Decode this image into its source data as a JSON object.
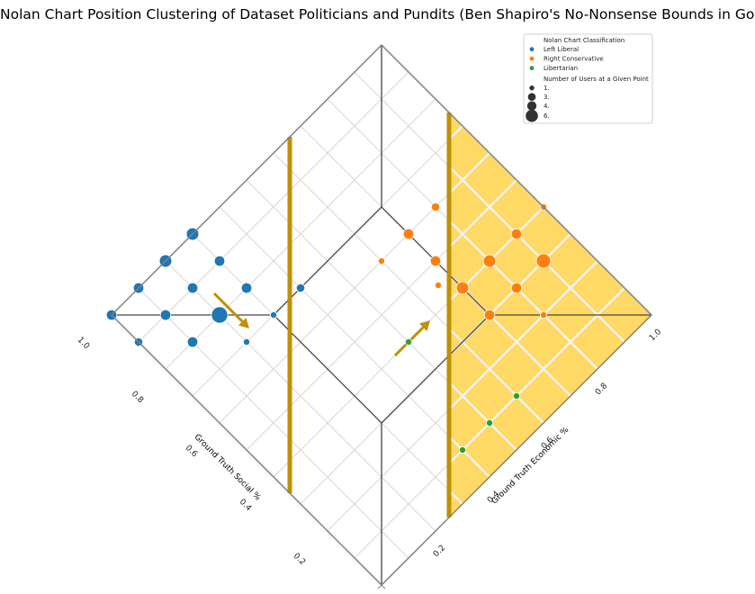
{
  "chart_data": {
    "type": "scatter",
    "title": "Nolan Chart Position Clustering of Dataset Politicians and Pundits (Ben Shapiro's No-Nonsense Bounds in Gold)",
    "xlabel": "Ground Truth Economic %",
    "ylabel": "Ground Truth Social %",
    "xlim": [
      0,
      1
    ],
    "ylim": [
      0,
      1
    ],
    "ticks": [
      "0.0",
      "0.2",
      "0.4",
      "0.6",
      "0.8",
      "1.0"
    ],
    "tick_values": [
      0,
      0.2,
      0.4,
      0.6,
      0.8,
      1.0
    ],
    "grid": true,
    "legend_position": "top-right",
    "legend": {
      "title": "Nolan Chart Classification",
      "size_title": "Number of Users at a Given Point",
      "size_labels": [
        "1.",
        "3.",
        "4.",
        "6."
      ],
      "size_values": [
        1,
        3,
        4,
        6
      ]
    },
    "gold_region_color": "#ffd966",
    "gold_line_color": "#bf9000",
    "series": [
      {
        "name": "Left Liberal",
        "color": "#1f77b4",
        "points": [
          {
            "x": 0.1,
            "y": 0.8,
            "n": 3
          },
          {
            "x": 0.0,
            "y": 0.9,
            "n": 2
          },
          {
            "x": 0.0,
            "y": 1.0,
            "n": 3
          },
          {
            "x": 0.1,
            "y": 1.0,
            "n": 3
          },
          {
            "x": 0.1,
            "y": 0.9,
            "n": 3
          },
          {
            "x": 0.2,
            "y": 0.9,
            "n": 3
          },
          {
            "x": 0.2,
            "y": 1.0,
            "n": 4
          },
          {
            "x": 0.3,
            "y": 0.8,
            "n": 3
          },
          {
            "x": 0.3,
            "y": 0.9,
            "n": 3
          },
          {
            "x": 0.3,
            "y": 1.0,
            "n": 4
          },
          {
            "x": 0.2,
            "y": 0.8,
            "n": 6
          },
          {
            "x": 0.2,
            "y": 0.7,
            "n": 1
          },
          {
            "x": 0.3,
            "y": 0.7,
            "n": 1
          },
          {
            "x": 0.4,
            "y": 0.7,
            "n": 2
          }
        ]
      },
      {
        "name": "Right Conservative",
        "color": "#ff7f0e",
        "points": [
          {
            "x": 0.7,
            "y": 0.6,
            "n": 3
          },
          {
            "x": 0.8,
            "y": 0.6,
            "n": 2
          },
          {
            "x": 0.7,
            "y": 0.5,
            "n": 3
          },
          {
            "x": 0.8,
            "y": 0.4,
            "n": 4
          },
          {
            "x": 0.8,
            "y": 0.3,
            "n": 3
          },
          {
            "x": 0.9,
            "y": 0.4,
            "n": 3
          },
          {
            "x": 1.0,
            "y": 0.4,
            "n": 1
          },
          {
            "x": 0.9,
            "y": 0.3,
            "n": 5
          },
          {
            "x": 0.7,
            "y": 0.4,
            "n": 4
          },
          {
            "x": 0.66,
            "y": 0.45,
            "n": 1
          },
          {
            "x": 0.7,
            "y": 0.3,
            "n": 3
          },
          {
            "x": 0.8,
            "y": 0.2,
            "n": 1
          },
          {
            "x": 0.6,
            "y": 0.6,
            "n": 1
          }
        ]
      },
      {
        "name": "Libertarian",
        "color": "#2ca02c",
        "points": [
          {
            "x": 0.5,
            "y": 0.4,
            "n": 1
          },
          {
            "x": 0.6,
            "y": 0.1,
            "n": 1
          },
          {
            "x": 0.5,
            "y": 0.1,
            "n": 1
          },
          {
            "x": 0.4,
            "y": 0.1,
            "n": 1
          }
        ]
      }
    ]
  }
}
